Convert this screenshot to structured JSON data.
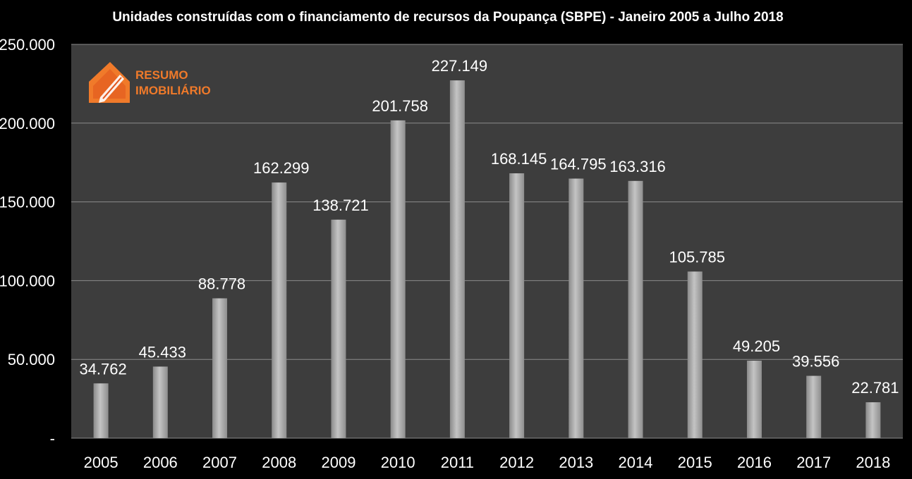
{
  "chart_data": {
    "type": "bar",
    "title": "Unidades construídas com o financiamento de recursos da Poupança (SBPE) - Janeiro 2005 a Julho 2018",
    "categories": [
      "2005",
      "2006",
      "2007",
      "2008",
      "2009",
      "2010",
      "2011",
      "2012",
      "2013",
      "2014",
      "2015",
      "2016",
      "2017",
      "2018"
    ],
    "values": [
      34762,
      45433,
      88778,
      162299,
      138721,
      201758,
      227149,
      168145,
      164795,
      163316,
      105785,
      49205,
      39556,
      22781
    ],
    "value_labels": [
      "34.762",
      "45.433",
      "88.778",
      "162.299",
      "138.721",
      "201.758",
      "227.149",
      "168.145",
      "164.795",
      "163.316",
      "105.785",
      "49.205",
      "39.556",
      "22.781"
    ],
    "ylim": [
      0,
      250000
    ],
    "yticks": [
      0,
      50000,
      100000,
      150000,
      200000,
      250000
    ],
    "ytick_labels": [
      "-",
      "50.000",
      "100.000",
      "150.000",
      "200.000",
      "250.000"
    ],
    "xlabel": "",
    "ylabel": "",
    "grid": true,
    "legend": "none",
    "colors": {
      "plot_background": "#3d3d3d",
      "bar": "#a8a8a8",
      "gridline": "#8c8c8c",
      "text": "#ffffff",
      "page_background": "#000000"
    }
  },
  "logo": {
    "line1": "RESUMO",
    "line2": "IMOBILIÁRIO",
    "color": "#f07a2a"
  }
}
